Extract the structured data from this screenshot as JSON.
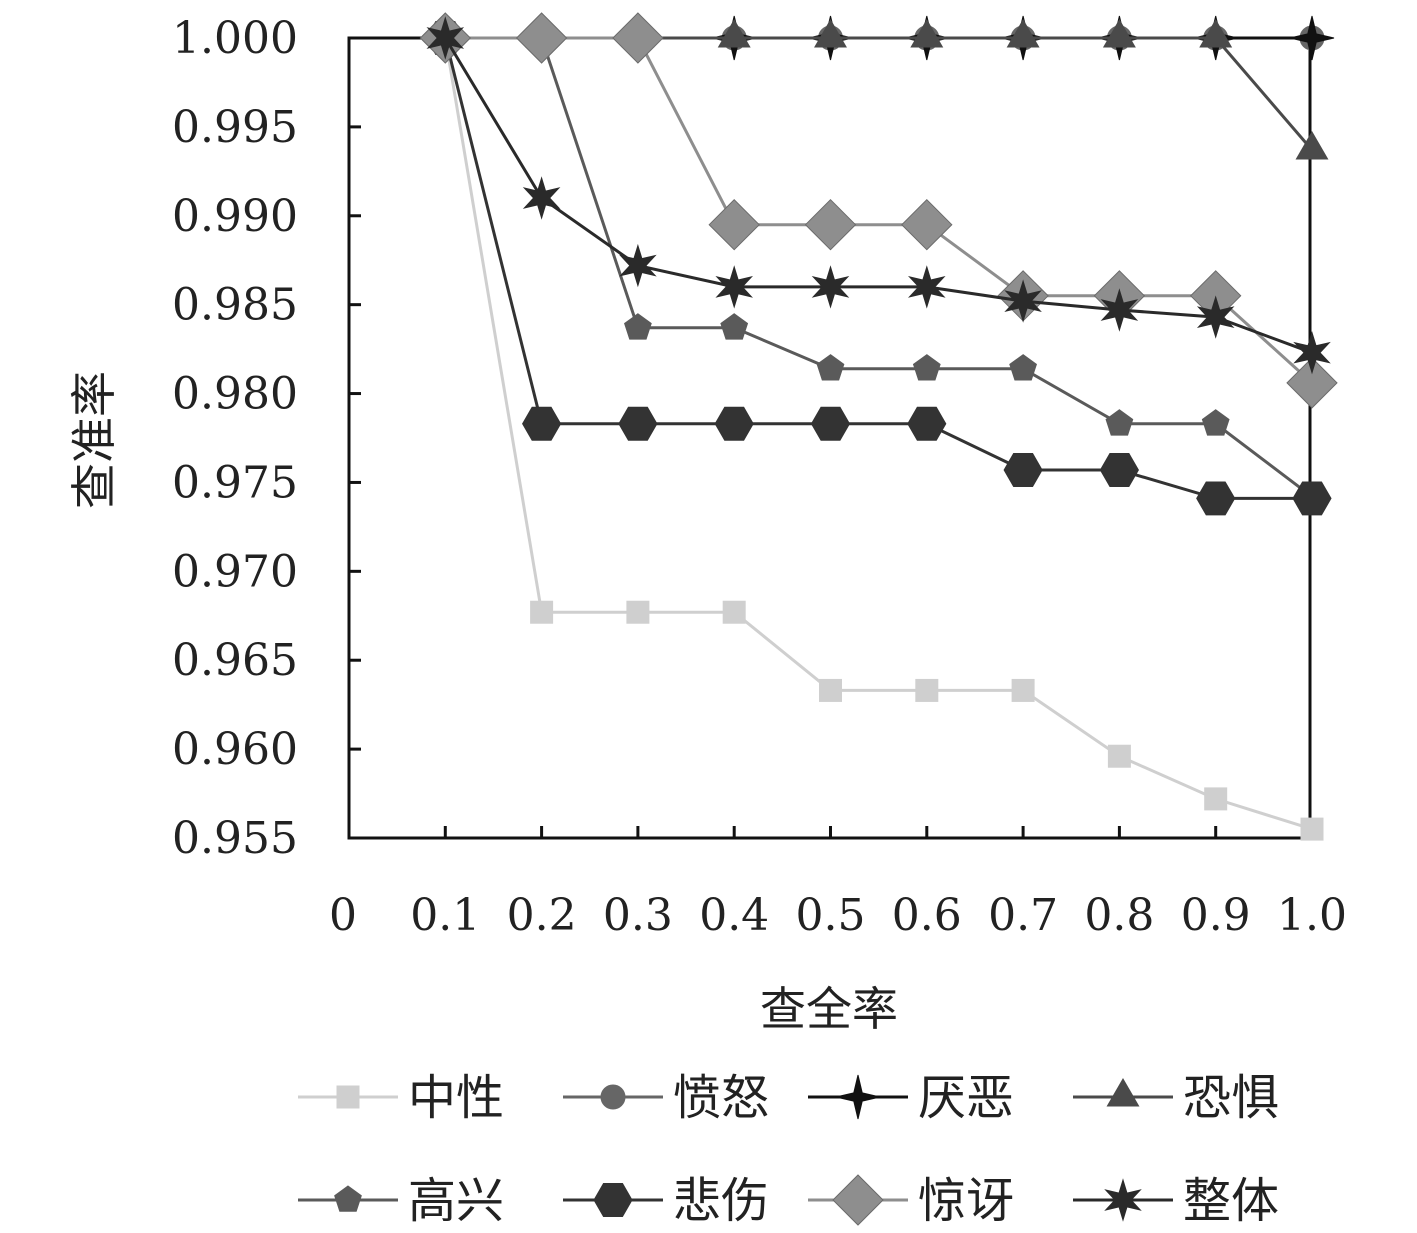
{
  "chart_data": {
    "type": "line",
    "xlabel": "查全率",
    "ylabel": "查准率",
    "x": [
      0.1,
      0.2,
      0.3,
      0.4,
      0.5,
      0.6,
      0.7,
      0.8,
      0.9,
      1.0
    ],
    "x_tick_labels": [
      "0",
      "0.1",
      "0.2",
      "0.3",
      "0.4",
      "0.5",
      "0.6",
      "0.7",
      "0.8",
      "0.9",
      "1.0"
    ],
    "y_tick_labels": [
      "1.000",
      "0.995",
      "0.990",
      "0.985",
      "0.980",
      "0.975",
      "0.970",
      "0.965",
      "0.960",
      "0.955"
    ],
    "xlim": [
      0,
      1.0
    ],
    "ylim": [
      0.955,
      1.0
    ],
    "grid": false,
    "legend_position": "bottom",
    "series": [
      {
        "name": "中性",
        "marker": "square",
        "color": "#cfcfcf",
        "values": [
          1.0,
          0.9677,
          0.9677,
          0.9677,
          0.9633,
          0.9633,
          0.9633,
          0.9596,
          0.9572,
          0.9555
        ]
      },
      {
        "name": "愤怒",
        "marker": "circle",
        "color": "#666666",
        "values": [
          1.0,
          1.0,
          1.0,
          1.0,
          1.0,
          1.0,
          1.0,
          1.0,
          1.0,
          1.0
        ]
      },
      {
        "name": "厌恶",
        "marker": "plus4",
        "color": "#111111",
        "values": [
          1.0,
          1.0,
          1.0,
          1.0,
          1.0,
          1.0,
          1.0,
          1.0,
          1.0,
          1.0
        ]
      },
      {
        "name": "恐惧",
        "marker": "triangle",
        "color": "#4a4a4a",
        "values": [
          1.0,
          1.0,
          1.0,
          1.0,
          1.0,
          1.0,
          1.0,
          1.0,
          1.0,
          0.9937
        ]
      },
      {
        "name": "高兴",
        "marker": "pentagon",
        "color": "#5a5a5a",
        "values": [
          1.0,
          1.0,
          0.9837,
          0.9837,
          0.9814,
          0.9814,
          0.9814,
          0.9783,
          0.9783,
          0.9742
        ]
      },
      {
        "name": "悲伤",
        "marker": "hexagon",
        "color": "#333333",
        "values": [
          1.0,
          0.9783,
          0.9783,
          0.9783,
          0.9783,
          0.9783,
          0.9757,
          0.9757,
          0.9741,
          0.9741
        ]
      },
      {
        "name": "惊讶",
        "marker": "diamond",
        "color": "#8e8e8e",
        "values": [
          1.0,
          1.0,
          1.0,
          0.9895,
          0.9895,
          0.9895,
          0.9855,
          0.9855,
          0.9855,
          0.9806
        ]
      },
      {
        "name": "整体",
        "marker": "star",
        "color": "#2a2a2a",
        "values": [
          1.0,
          0.991,
          0.9872,
          0.986,
          0.986,
          0.986,
          0.9852,
          0.9847,
          0.9843,
          0.9823
        ]
      }
    ]
  }
}
